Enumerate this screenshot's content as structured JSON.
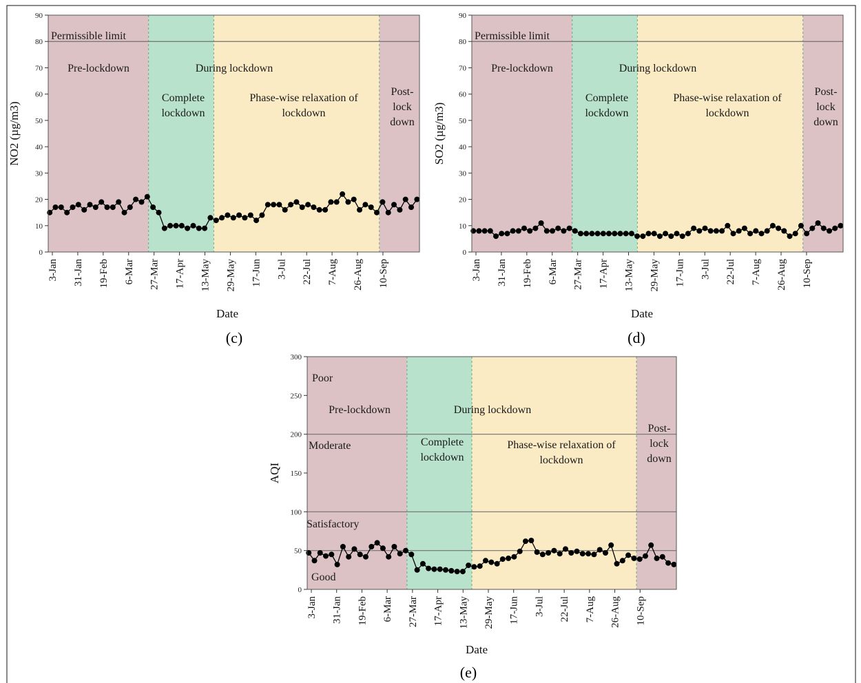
{
  "panels": [
    {
      "caption": "(c)",
      "annotations": {
        "limit_label": "Permissible limit",
        "pre": "Pre-lockdown",
        "during": "During lockdown",
        "complete": [
          "Complete",
          "lockdown"
        ],
        "relax": [
          "Phase-wise relaxation of",
          "lockdown"
        ],
        "post": [
          "Post-",
          "lock",
          "down"
        ]
      }
    },
    {
      "caption": "(d)",
      "annotations": {
        "limit_label": "Permissible limit",
        "pre": "Pre-lockdown",
        "during": "During lockdown",
        "complete": [
          "Complete",
          "lockdown"
        ],
        "relax": [
          "Phase-wise relaxation of",
          "lockdown"
        ],
        "post": [
          "Post-",
          "lock",
          "down"
        ]
      }
    },
    {
      "caption": "(e)",
      "annotations": {
        "pre": "Pre-lockdown",
        "during": "During lockdown",
        "complete": [
          "Complete",
          "lockdown"
        ],
        "relax": [
          "Phase-wise relaxation of",
          "lockdown"
        ],
        "post": [
          "Post-",
          "lock",
          "down"
        ],
        "categories": [
          "Poor",
          "Moderate",
          "Satisfactory",
          "Good"
        ]
      }
    }
  ],
  "colors": {
    "pre": "#dcc2c4",
    "complete": "#b8e2cb",
    "relax": "#fbebc4",
    "post": "#dcc2c4",
    "markers": "#000000",
    "frame": "#555555"
  },
  "chart_data": [
    {
      "type": "line",
      "ylabel": "NO2 (µg/m3)",
      "xlabel": "Date",
      "ylim": [
        0,
        90
      ],
      "yticks": [
        0,
        10,
        20,
        30,
        40,
        50,
        60,
        70,
        80,
        90
      ],
      "xticks": [
        "3-Jan",
        "31-Jan",
        "19-Feb",
        "6-Mar",
        "27-Mar",
        "17-Apr",
        "13-May",
        "29-May",
        "17-Jun",
        "3-Jul",
        "22-Jul",
        "7-Aug",
        "26-Aug",
        "10-Sep"
      ],
      "phases": [
        "Pre-lockdown",
        "Complete lockdown",
        "Phase-wise relaxation of lockdown",
        "Post-lockdown"
      ],
      "phase_bounds": [
        0,
        20,
        33,
        66,
        74
      ],
      "reference_lines": [
        {
          "label": "Permissible limit",
          "y": 80
        }
      ],
      "series": [
        {
          "values": [
            15,
            17,
            17,
            15,
            17,
            18,
            16,
            18,
            17,
            19,
            17,
            17,
            19,
            15,
            17,
            20,
            19,
            21,
            17,
            15,
            9,
            10,
            10,
            10,
            9,
            10,
            9,
            9,
            13,
            12,
            13,
            14,
            13,
            14,
            13,
            14,
            12,
            14,
            18,
            18,
            18,
            16,
            18,
            19,
            17,
            18,
            17,
            16,
            16,
            19,
            19,
            22,
            19,
            20,
            16,
            18,
            17,
            15,
            19,
            15,
            18,
            16,
            20,
            17,
            20
          ]
        }
      ]
    },
    {
      "type": "line",
      "ylabel": "SO2 (µg/m3)",
      "xlabel": "Date",
      "ylim": [
        0,
        90
      ],
      "yticks": [
        0,
        10,
        20,
        30,
        40,
        50,
        60,
        70,
        80,
        90
      ],
      "xticks": [
        "3-Jan",
        "31-Jan",
        "19-Feb",
        "6-Mar",
        "27-Mar",
        "17-Apr",
        "13-May",
        "29-May",
        "17-Jun",
        "3-Jul",
        "22-Jul",
        "7-Aug",
        "26-Aug",
        "10-Sep"
      ],
      "phases": [
        "Pre-lockdown",
        "Complete lockdown",
        "Phase-wise relaxation of lockdown",
        "Post-lockdown"
      ],
      "phase_bounds": [
        0,
        20,
        33,
        66,
        74
      ],
      "reference_lines": [
        {
          "label": "Permissible limit",
          "y": 80
        }
      ],
      "series": [
        {
          "values": [
            8,
            8,
            8,
            8,
            6,
            7,
            7,
            8,
            8,
            9,
            8,
            9,
            11,
            8,
            8,
            9,
            8,
            9,
            8,
            7,
            7,
            7,
            7,
            7,
            7,
            7,
            7,
            7,
            7,
            6,
            6,
            7,
            7,
            6,
            7,
            6,
            7,
            6,
            7,
            9,
            8,
            9,
            8,
            8,
            8,
            10,
            7,
            8,
            9,
            7,
            8,
            7,
            8,
            10,
            9,
            8,
            6,
            7,
            10,
            7,
            9,
            11,
            9,
            8,
            9,
            10
          ]
        }
      ]
    },
    {
      "type": "line",
      "ylabel": "AQI",
      "xlabel": "Date",
      "ylim": [
        0,
        300
      ],
      "yticks": [
        0,
        50,
        100,
        150,
        200,
        250,
        300
      ],
      "xticks": [
        "3-Jan",
        "31-Jan",
        "19-Feb",
        "6-Mar",
        "27-Mar",
        "17-Apr",
        "13-May",
        "29-May",
        "17-Jun",
        "3-Jul",
        "22-Jul",
        "7-Aug",
        "26-Aug",
        "10-Sep"
      ],
      "phases": [
        "Pre-lockdown",
        "Complete lockdown",
        "Phase-wise relaxation of lockdown",
        "Post-lockdown"
      ],
      "phase_bounds": [
        0,
        20,
        33,
        66,
        74
      ],
      "reference_lines": [
        {
          "label": "Satisfactory",
          "y": 100
        },
        {
          "label": "Moderate",
          "y": 200
        },
        {
          "label": "Good",
          "y": 50
        }
      ],
      "series": [
        {
          "values": [
            47,
            37,
            47,
            43,
            45,
            32,
            55,
            42,
            52,
            45,
            42,
            55,
            60,
            53,
            42,
            55,
            46,
            50,
            45,
            25,
            33,
            27,
            26,
            26,
            25,
            24,
            23,
            23,
            31,
            29,
            30,
            37,
            35,
            33,
            39,
            40,
            42,
            49,
            62,
            63,
            48,
            45,
            47,
            50,
            46,
            52,
            47,
            49,
            46,
            46,
            45,
            51,
            47,
            57,
            33,
            37,
            44,
            40,
            39,
            43,
            57,
            40,
            42,
            34,
            32
          ]
        }
      ]
    }
  ]
}
